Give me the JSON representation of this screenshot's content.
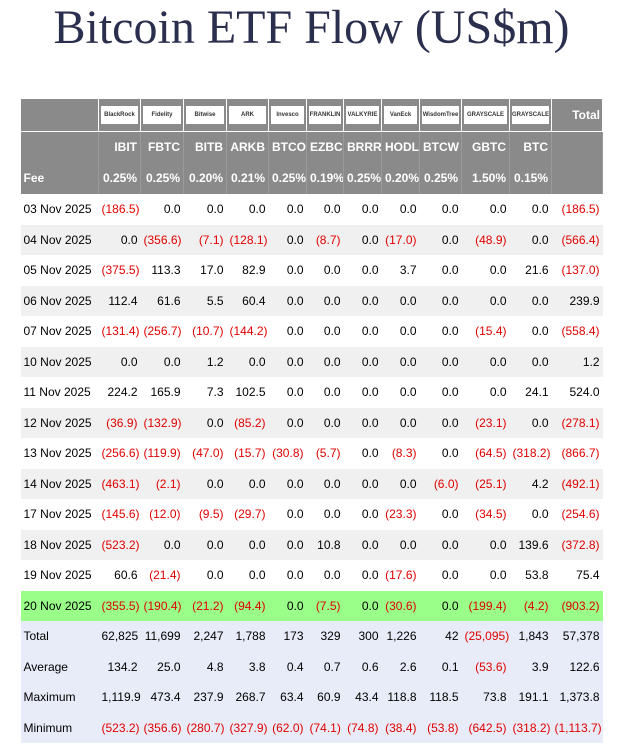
{
  "title": "Bitcoin ETF Flow (US$m)",
  "header": {
    "logos": [
      "BlackRock",
      "Fidelity",
      "Bitwise",
      "ARK",
      "Invesco",
      "FRANKLIN",
      "VALKYRIE",
      "VanEck",
      "WisdomTree",
      "GRAYSCALE",
      "GRAYSCALE"
    ],
    "total": "Total",
    "tickers": [
      "IBIT",
      "FBTC",
      "BITB",
      "ARKB",
      "BTCO",
      "EZBC",
      "BRRR",
      "HODL",
      "BTCW",
      "GBTC",
      "BTC"
    ],
    "fee_label": "Fee",
    "fees": [
      "0.25%",
      "0.25%",
      "0.20%",
      "0.21%",
      "0.25%",
      "0.19%",
      "0.25%",
      "0.20%",
      "0.25%",
      "1.50%",
      "0.15%"
    ]
  },
  "table": {
    "rows": [
      [
        "03 Nov 2025",
        "(186.5)",
        "0.0",
        "0.0",
        "0.0",
        "0.0",
        "0.0",
        "0.0",
        "0.0",
        "0.0",
        "0.0",
        "0.0",
        "(186.5)"
      ],
      [
        "04 Nov 2025",
        "0.0",
        "(356.6)",
        "(7.1)",
        "(128.1)",
        "0.0",
        "(8.7)",
        "0.0",
        "(17.0)",
        "0.0",
        "(48.9)",
        "0.0",
        "(566.4)"
      ],
      [
        "05 Nov 2025",
        "(375.5)",
        "113.3",
        "17.0",
        "82.9",
        "0.0",
        "0.0",
        "0.0",
        "3.7",
        "0.0",
        "0.0",
        "21.6",
        "(137.0)"
      ],
      [
        "06 Nov 2025",
        "112.4",
        "61.6",
        "5.5",
        "60.4",
        "0.0",
        "0.0",
        "0.0",
        "0.0",
        "0.0",
        "0.0",
        "0.0",
        "239.9"
      ],
      [
        "07 Nov 2025",
        "(131.4)",
        "(256.7)",
        "(10.7)",
        "(144.2)",
        "0.0",
        "0.0",
        "0.0",
        "0.0",
        "0.0",
        "(15.4)",
        "0.0",
        "(558.4)"
      ],
      [
        "10 Nov 2025",
        "0.0",
        "0.0",
        "1.2",
        "0.0",
        "0.0",
        "0.0",
        "0.0",
        "0.0",
        "0.0",
        "0.0",
        "0.0",
        "1.2"
      ],
      [
        "11 Nov 2025",
        "224.2",
        "165.9",
        "7.3",
        "102.5",
        "0.0",
        "0.0",
        "0.0",
        "0.0",
        "0.0",
        "0.0",
        "24.1",
        "524.0"
      ],
      [
        "12 Nov 2025",
        "(36.9)",
        "(132.9)",
        "0.0",
        "(85.2)",
        "0.0",
        "0.0",
        "0.0",
        "0.0",
        "0.0",
        "(23.1)",
        "0.0",
        "(278.1)"
      ],
      [
        "13 Nov 2025",
        "(256.6)",
        "(119.9)",
        "(47.0)",
        "(15.7)",
        "(30.8)",
        "(5.7)",
        "0.0",
        "(8.3)",
        "0.0",
        "(64.5)",
        "(318.2)",
        "(866.7)"
      ],
      [
        "14 Nov 2025",
        "(463.1)",
        "(2.1)",
        "0.0",
        "0.0",
        "0.0",
        "0.0",
        "0.0",
        "0.0",
        "(6.0)",
        "(25.1)",
        "4.2",
        "(492.1)"
      ],
      [
        "17 Nov 2025",
        "(145.6)",
        "(12.0)",
        "(9.5)",
        "(29.7)",
        "0.0",
        "0.0",
        "0.0",
        "(23.3)",
        "0.0",
        "(34.5)",
        "0.0",
        "(254.6)"
      ],
      [
        "18 Nov 2025",
        "(523.2)",
        "0.0",
        "0.0",
        "0.0",
        "0.0",
        "10.8",
        "0.0",
        "0.0",
        "0.0",
        "0.0",
        "139.6",
        "(372.8)"
      ],
      [
        "19 Nov 2025",
        "60.6",
        "(21.4)",
        "0.0",
        "0.0",
        "0.0",
        "0.0",
        "0.0",
        "(17.6)",
        "0.0",
        "0.0",
        "53.8",
        "75.4"
      ],
      [
        "20 Nov 2025",
        "(355.5)",
        "(190.4)",
        "(21.2)",
        "(94.4)",
        "0.0",
        "(7.5)",
        "0.0",
        "(30.6)",
        "0.0",
        "(199.4)",
        "(4.2)",
        "(903.2)"
      ]
    ],
    "summary": [
      [
        "Total",
        "62,825",
        "11,699",
        "2,247",
        "1,788",
        "173",
        "329",
        "300",
        "1,226",
        "42",
        "(25,095)",
        "1,843",
        "57,378"
      ],
      [
        "Average",
        "134.2",
        "25.0",
        "4.8",
        "3.8",
        "0.4",
        "0.7",
        "0.6",
        "2.6",
        "0.1",
        "(53.6)",
        "3.9",
        "122.6"
      ],
      [
        "Maximum",
        "1,119.9",
        "473.4",
        "237.9",
        "268.7",
        "63.4",
        "60.9",
        "43.4",
        "118.8",
        "118.5",
        "73.8",
        "191.1",
        "1,373.8"
      ],
      [
        "Minimum",
        "(523.2)",
        "(356.6)",
        "(280.7)",
        "(327.9)",
        "(62.0)",
        "(74.1)",
        "(74.8)",
        "(38.4)",
        "(53.8)",
        "(642.5)",
        "(318.2)",
        "(1,113.7)"
      ]
    ]
  }
}
